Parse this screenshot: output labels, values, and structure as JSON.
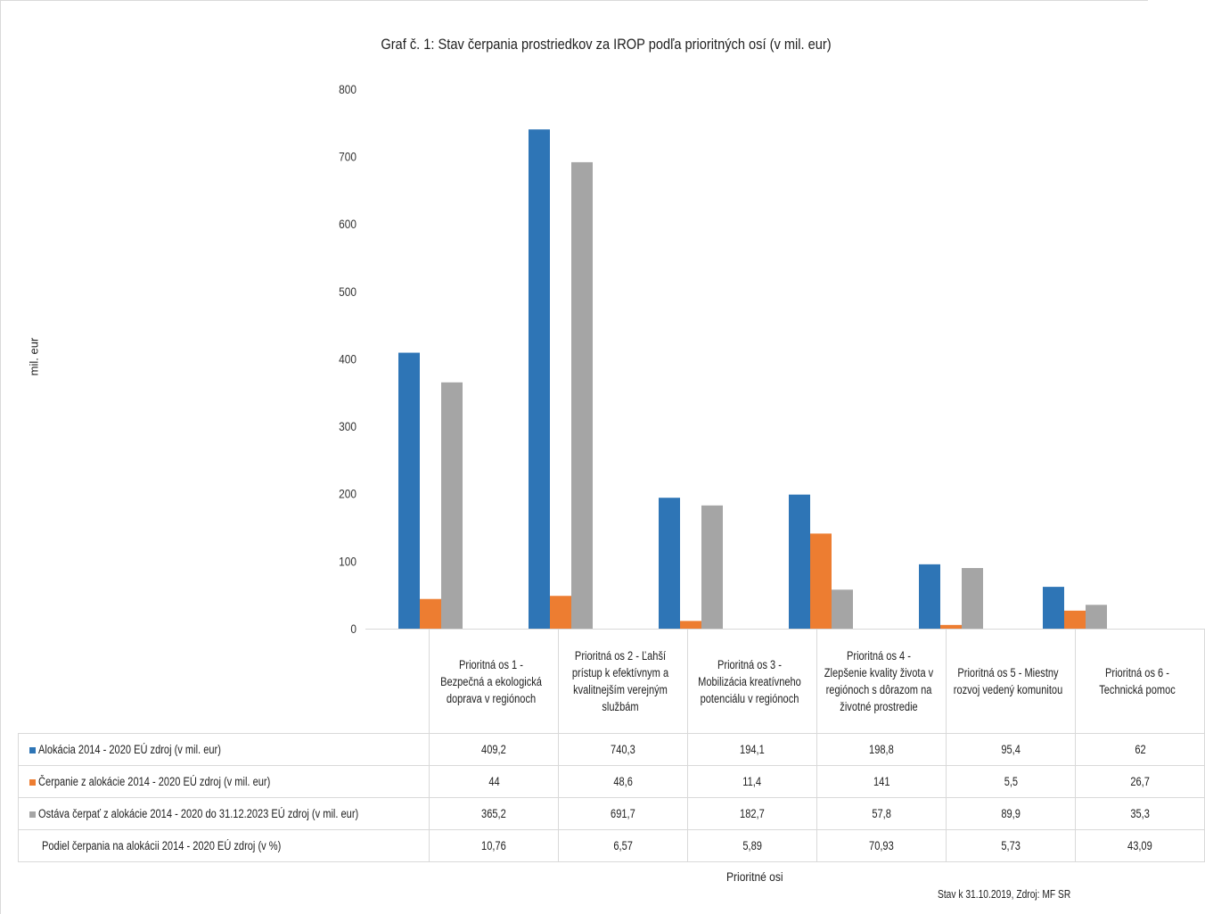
{
  "chart_data": {
    "type": "bar",
    "title": "Graf č. 1: Stav čerpania prostriedkov za IROP podľa prioritných osí (v mil. eur)",
    "xlabel": "Prioritné osi",
    "ylabel": "mil. eur",
    "ylim": [
      0,
      800
    ],
    "yticks": [
      "0",
      "100",
      "200",
      "300",
      "400",
      "500",
      "600",
      "700",
      "800"
    ],
    "categories": [
      "Prioritná os 1 - Bezpečná a ekologická doprava v regiónoch",
      "Prioritná os 2 - Ľahší prístup k efektívnym a kvalitnejším verejným službám",
      "Prioritná os 3 - Mobilizácia kreatívneho potenciálu v regiónoch",
      "Prioritná os 4 - Zlepšenie kvality života v regiónoch s dôrazom na životné prostredie",
      "Prioritná os 5 - Miestny rozvoj vedený komunitou",
      "Prioritná os 6 - Technická pomoc"
    ],
    "series": [
      {
        "name": "Alokácia 2014 - 2020 EÚ zdroj (v mil. eur)",
        "color": "#2e75b6",
        "values": [
          409.2,
          740.3,
          194.1,
          198.8,
          95.4,
          62
        ],
        "labels": [
          "409,2",
          "740,3",
          "194,1",
          "198,8",
          "95,4",
          "62"
        ]
      },
      {
        "name": "Čerpanie z alokácie 2014 - 2020 EÚ zdroj (v mil. eur)",
        "color": "#ed7d31",
        "values": [
          44,
          48.6,
          11.4,
          141,
          5.5,
          26.7
        ],
        "labels": [
          "44",
          "48,6",
          "11,4",
          "141",
          "5,5",
          "26,7"
        ]
      },
      {
        "name": "Ostáva čerpať z alokácie 2014 - 2020 do 31.12.2023 EÚ zdroj (v mil. eur)",
        "color": "#a5a5a5",
        "values": [
          365.2,
          691.7,
          182.7,
          57.8,
          89.9,
          35.3
        ],
        "labels": [
          "365,2",
          "691,7",
          "182,7",
          "57,8",
          "89,9",
          "35,3"
        ]
      }
    ],
    "extra_row": {
      "name": "Podiel čerpania na alokácii 2014 - 2020 EÚ zdroj (v %)",
      "labels": [
        "10,76",
        "6,57",
        "5,89",
        "70,93",
        "5,73",
        "43,09"
      ]
    },
    "legend": "table",
    "grid": false
  },
  "source_note": "Stav k 31.10.2019, Zdroj: MF SR"
}
